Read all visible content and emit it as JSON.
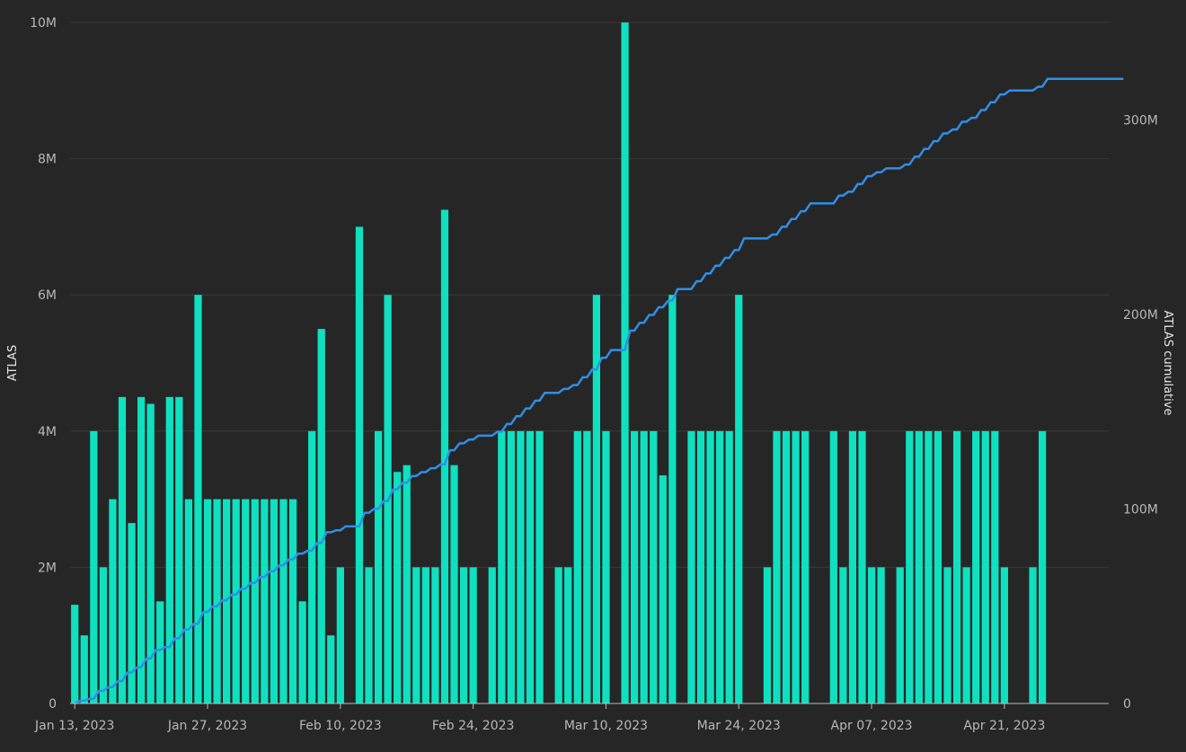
{
  "chart_data": {
    "type": "bar",
    "colors": {
      "bars": "#0fe0c0",
      "line": "#2f8fe8",
      "background": "#262626"
    },
    "x_ticks": [
      "Jan 13, 2023",
      "Jan 27, 2023",
      "Feb 10, 2023",
      "Feb 24, 2023",
      "Mar 10, 2023",
      "Mar 24, 2023",
      "Apr 07, 2023",
      "Apr 21, 2023"
    ],
    "x_range": [
      "2023-01-13",
      "2023-05-02"
    ],
    "left_axis": {
      "label": "ATLAS",
      "ylim": [
        0,
        10000000
      ],
      "ticks": [
        "0",
        "2M",
        "4M",
        "6M",
        "8M",
        "10M"
      ]
    },
    "right_axis": {
      "label": "ATLAS cumulative",
      "ylim": [
        0,
        350000000
      ],
      "ticks": [
        "0",
        "100M",
        "200M",
        "300M"
      ]
    },
    "grid": true,
    "series": [
      {
        "type": "bar",
        "axis": "left",
        "start_date": "2023-01-13",
        "values": [
          1450000,
          1000000,
          4000000,
          2000000,
          3000000,
          4500000,
          2650000,
          4500000,
          4400000,
          1500000,
          4500000,
          4500000,
          3000000,
          6000000,
          3000000,
          3000000,
          3000000,
          3000000,
          3000000,
          3000000,
          3000000,
          3000000,
          3000000,
          3000000,
          1500000,
          4000000,
          5500000,
          1000000,
          2000000,
          0,
          7000000,
          2000000,
          4000000,
          6000000,
          3400000,
          3500000,
          2000000,
          2000000,
          2000000,
          7250000,
          3500000,
          2000000,
          2000000,
          0,
          2000000,
          4000000,
          4000000,
          4000000,
          4000000,
          4000000,
          0,
          2000000,
          2000000,
          4000000,
          4000000,
          6000000,
          4000000,
          0,
          10000000,
          4000000,
          4000000,
          4000000,
          3350000,
          6000000,
          0,
          4000000,
          4000000,
          4000000,
          4000000,
          4000000,
          6000000,
          0,
          0,
          2000000,
          4000000,
          4000000,
          4000000,
          4000000,
          0,
          0,
          4000000,
          2000000,
          4000000,
          4000000,
          2000000,
          2000000,
          0,
          2000000,
          4000000,
          4000000,
          4000000,
          4000000,
          2000000,
          4000000,
          2000000,
          4000000,
          4000000,
          4000000,
          2000000,
          0,
          0,
          2000000,
          4000000,
          0,
          0,
          0,
          0,
          0,
          0,
          0,
          0
        ]
      },
      {
        "type": "line",
        "axis": "right",
        "cumulative_of": "bar"
      }
    ]
  }
}
